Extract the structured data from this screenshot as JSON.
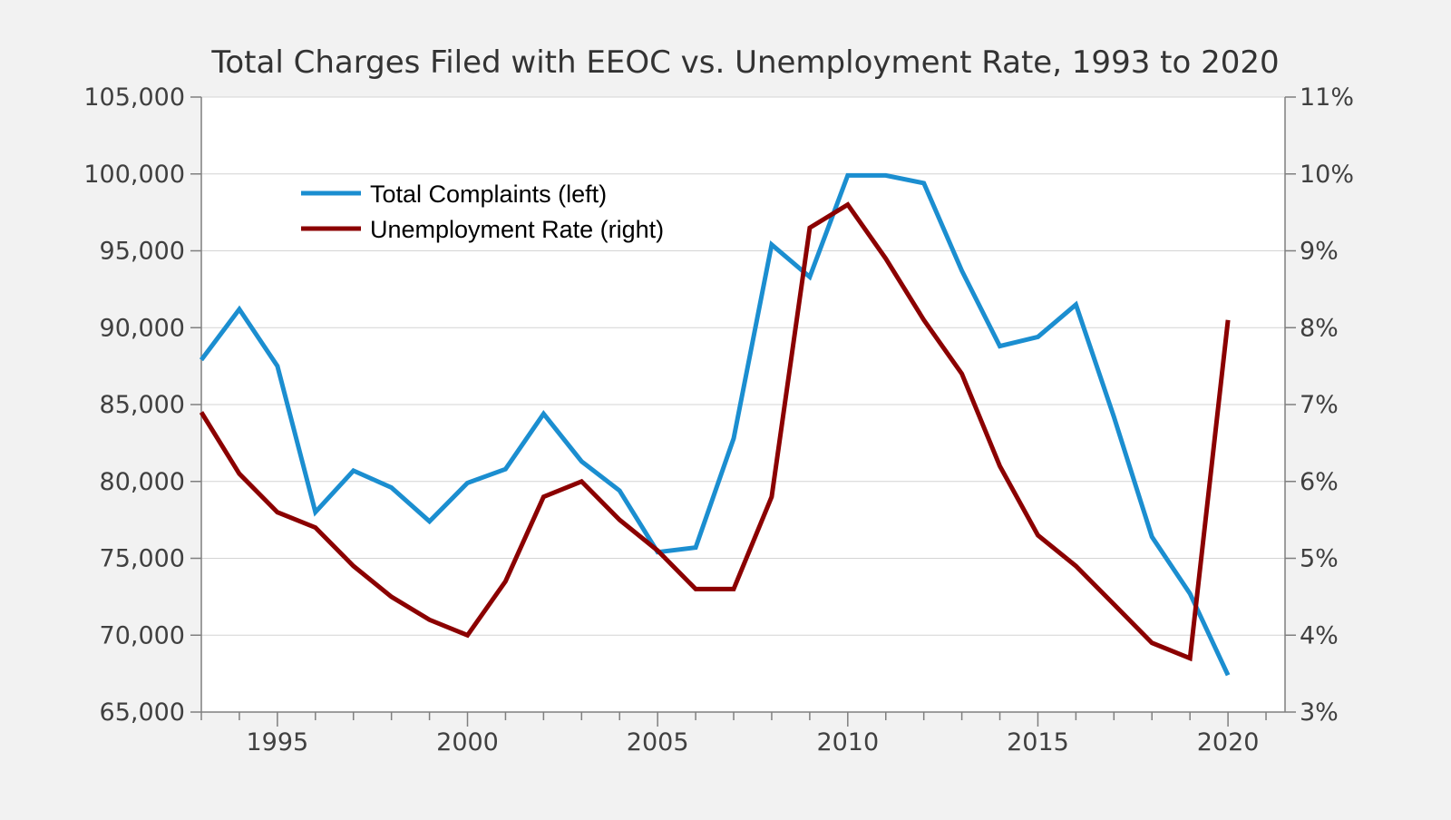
{
  "chart_data": {
    "type": "line",
    "title": "Total Charges Filed with EEOC vs. Unemployment Rate, 1993 to 2020",
    "x": [
      1993,
      1994,
      1995,
      1996,
      1997,
      1998,
      1999,
      2000,
      2001,
      2002,
      2003,
      2004,
      2005,
      2006,
      2007,
      2008,
      2009,
      2010,
      2011,
      2012,
      2013,
      2014,
      2015,
      2016,
      2017,
      2018,
      2019,
      2020
    ],
    "xlim": [
      1993,
      2021.5
    ],
    "x_ticks": [
      1995,
      2000,
      2005,
      2010,
      2015,
      2020
    ],
    "y_left": {
      "ylim": [
        65000,
        105000
      ],
      "ticks": [
        65000,
        70000,
        75000,
        80000,
        85000,
        90000,
        95000,
        100000,
        105000
      ],
      "tick_labels": [
        "65,000",
        "70,000",
        "75,000",
        "80,000",
        "85,000",
        "90,000",
        "95,000",
        "100,000",
        "105,000"
      ]
    },
    "y_right": {
      "ylim": [
        3,
        11
      ],
      "ticks": [
        3,
        4,
        5,
        6,
        7,
        8,
        9,
        10,
        11
      ],
      "tick_labels": [
        "3%",
        "4%",
        "5%",
        "6%",
        "7%",
        "8%",
        "9%",
        "10%",
        "11%"
      ]
    },
    "series": [
      {
        "name": "Total Complaints (left)",
        "axis": "left",
        "color": "#1b8ed0",
        "values": [
          87900,
          91200,
          87500,
          78000,
          80700,
          79600,
          77400,
          79900,
          80800,
          84400,
          81300,
          79400,
          75400,
          75700,
          82800,
          95400,
          93300,
          99900,
          99900,
          99400,
          93700,
          88800,
          89400,
          91500,
          84200,
          76400,
          72700,
          67400
        ]
      },
      {
        "name": "Unemployment Rate (right)",
        "axis": "right",
        "color": "#8b0000",
        "values": [
          6.9,
          6.1,
          5.6,
          5.4,
          4.9,
          4.5,
          4.2,
          4.0,
          4.7,
          5.8,
          6.0,
          5.5,
          5.1,
          4.6,
          4.6,
          5.8,
          9.3,
          9.6,
          8.9,
          8.1,
          7.4,
          6.2,
          5.3,
          4.9,
          4.4,
          3.9,
          3.7,
          8.1
        ]
      }
    ],
    "legend": {
      "position": "top-left-inside"
    },
    "grid": {
      "y": true,
      "x": false
    }
  }
}
